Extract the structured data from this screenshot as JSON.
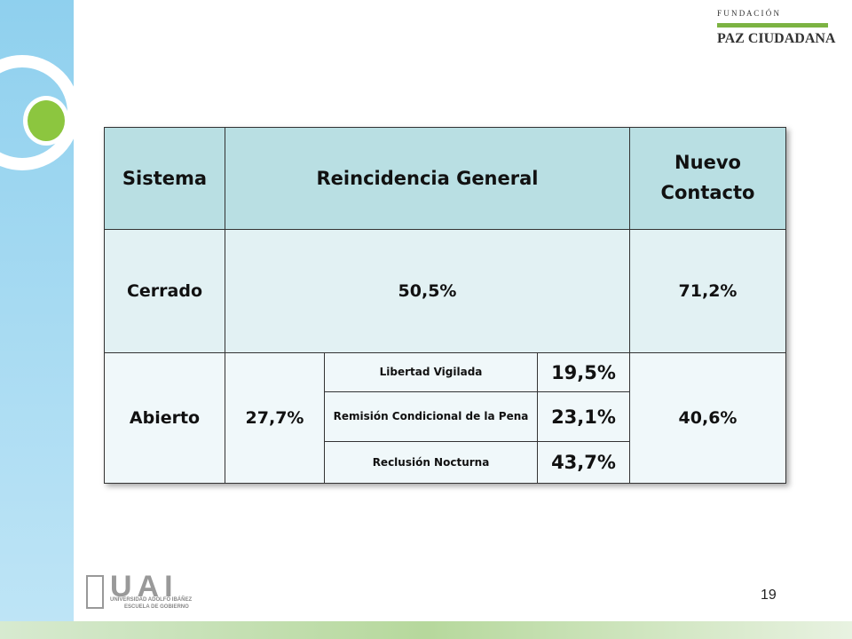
{
  "header": {
    "logo_top": "F U N D A C I Ó N",
    "logo_bottom": "PAZ CIUDADANA"
  },
  "table": {
    "headers": [
      "Sistema",
      "Reincidencia General",
      "Nuevo Contacto"
    ],
    "rows": [
      {
        "sistema": "Cerrado",
        "general": "50,5%",
        "nuevo": "71,2%"
      },
      {
        "sistema": "Abierto",
        "general": "27,7%",
        "sub": [
          {
            "label": "Libertad Vigilada",
            "value": "19,5%"
          },
          {
            "label": "Remisión Condicional de la Pena",
            "value": "23,1%"
          },
          {
            "label": "Reclusión Nocturna",
            "value": "43,7%"
          }
        ],
        "nuevo": "40,6%"
      }
    ]
  },
  "footer": {
    "logo_mark": "UAI",
    "logo_line1": "UNIVERSIDAD ADOLFO IBÁÑEZ",
    "logo_line2": "ESCUELA DE GOBIERNO",
    "page": "19"
  }
}
